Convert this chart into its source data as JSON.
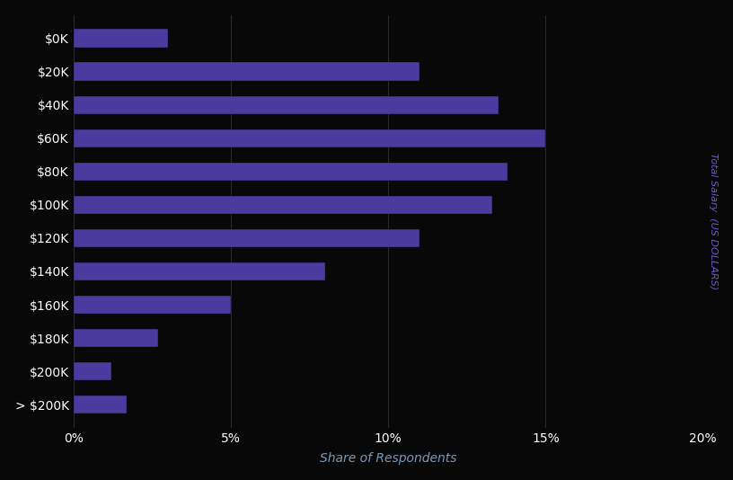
{
  "categories": [
    "$0K",
    "$20K",
    "$40K",
    "$60K",
    "$80K",
    "$100K",
    "$120K",
    "$140K",
    "$160K",
    "$180K",
    "$200K",
    "> $200K"
  ],
  "values": [
    3.0,
    11.0,
    13.5,
    15.0,
    13.8,
    13.3,
    11.0,
    8.0,
    5.0,
    2.7,
    1.2,
    1.7
  ],
  "bar_color": "#4B3B9E",
  "background_color": "#080808",
  "bar_edge_color": "#080808",
  "xlabel": "Share of Respondents",
  "ylabel": "Total Salary  (US DOLLARS)",
  "xlabel_fontsize": 10,
  "ylabel_fontsize": 8,
  "tick_label_color": "#ffffff",
  "axis_label_color": "#7a9ab5",
  "ylabel_color": "#6a5acd",
  "grid_color": "#2a2a2a",
  "xlim": [
    0,
    20
  ],
  "xtick_positions": [
    0,
    5,
    10,
    15,
    20
  ],
  "xtick_labels": [
    "0%",
    "5%",
    "10%",
    "15%",
    "20%"
  ],
  "bar_height": 0.55
}
